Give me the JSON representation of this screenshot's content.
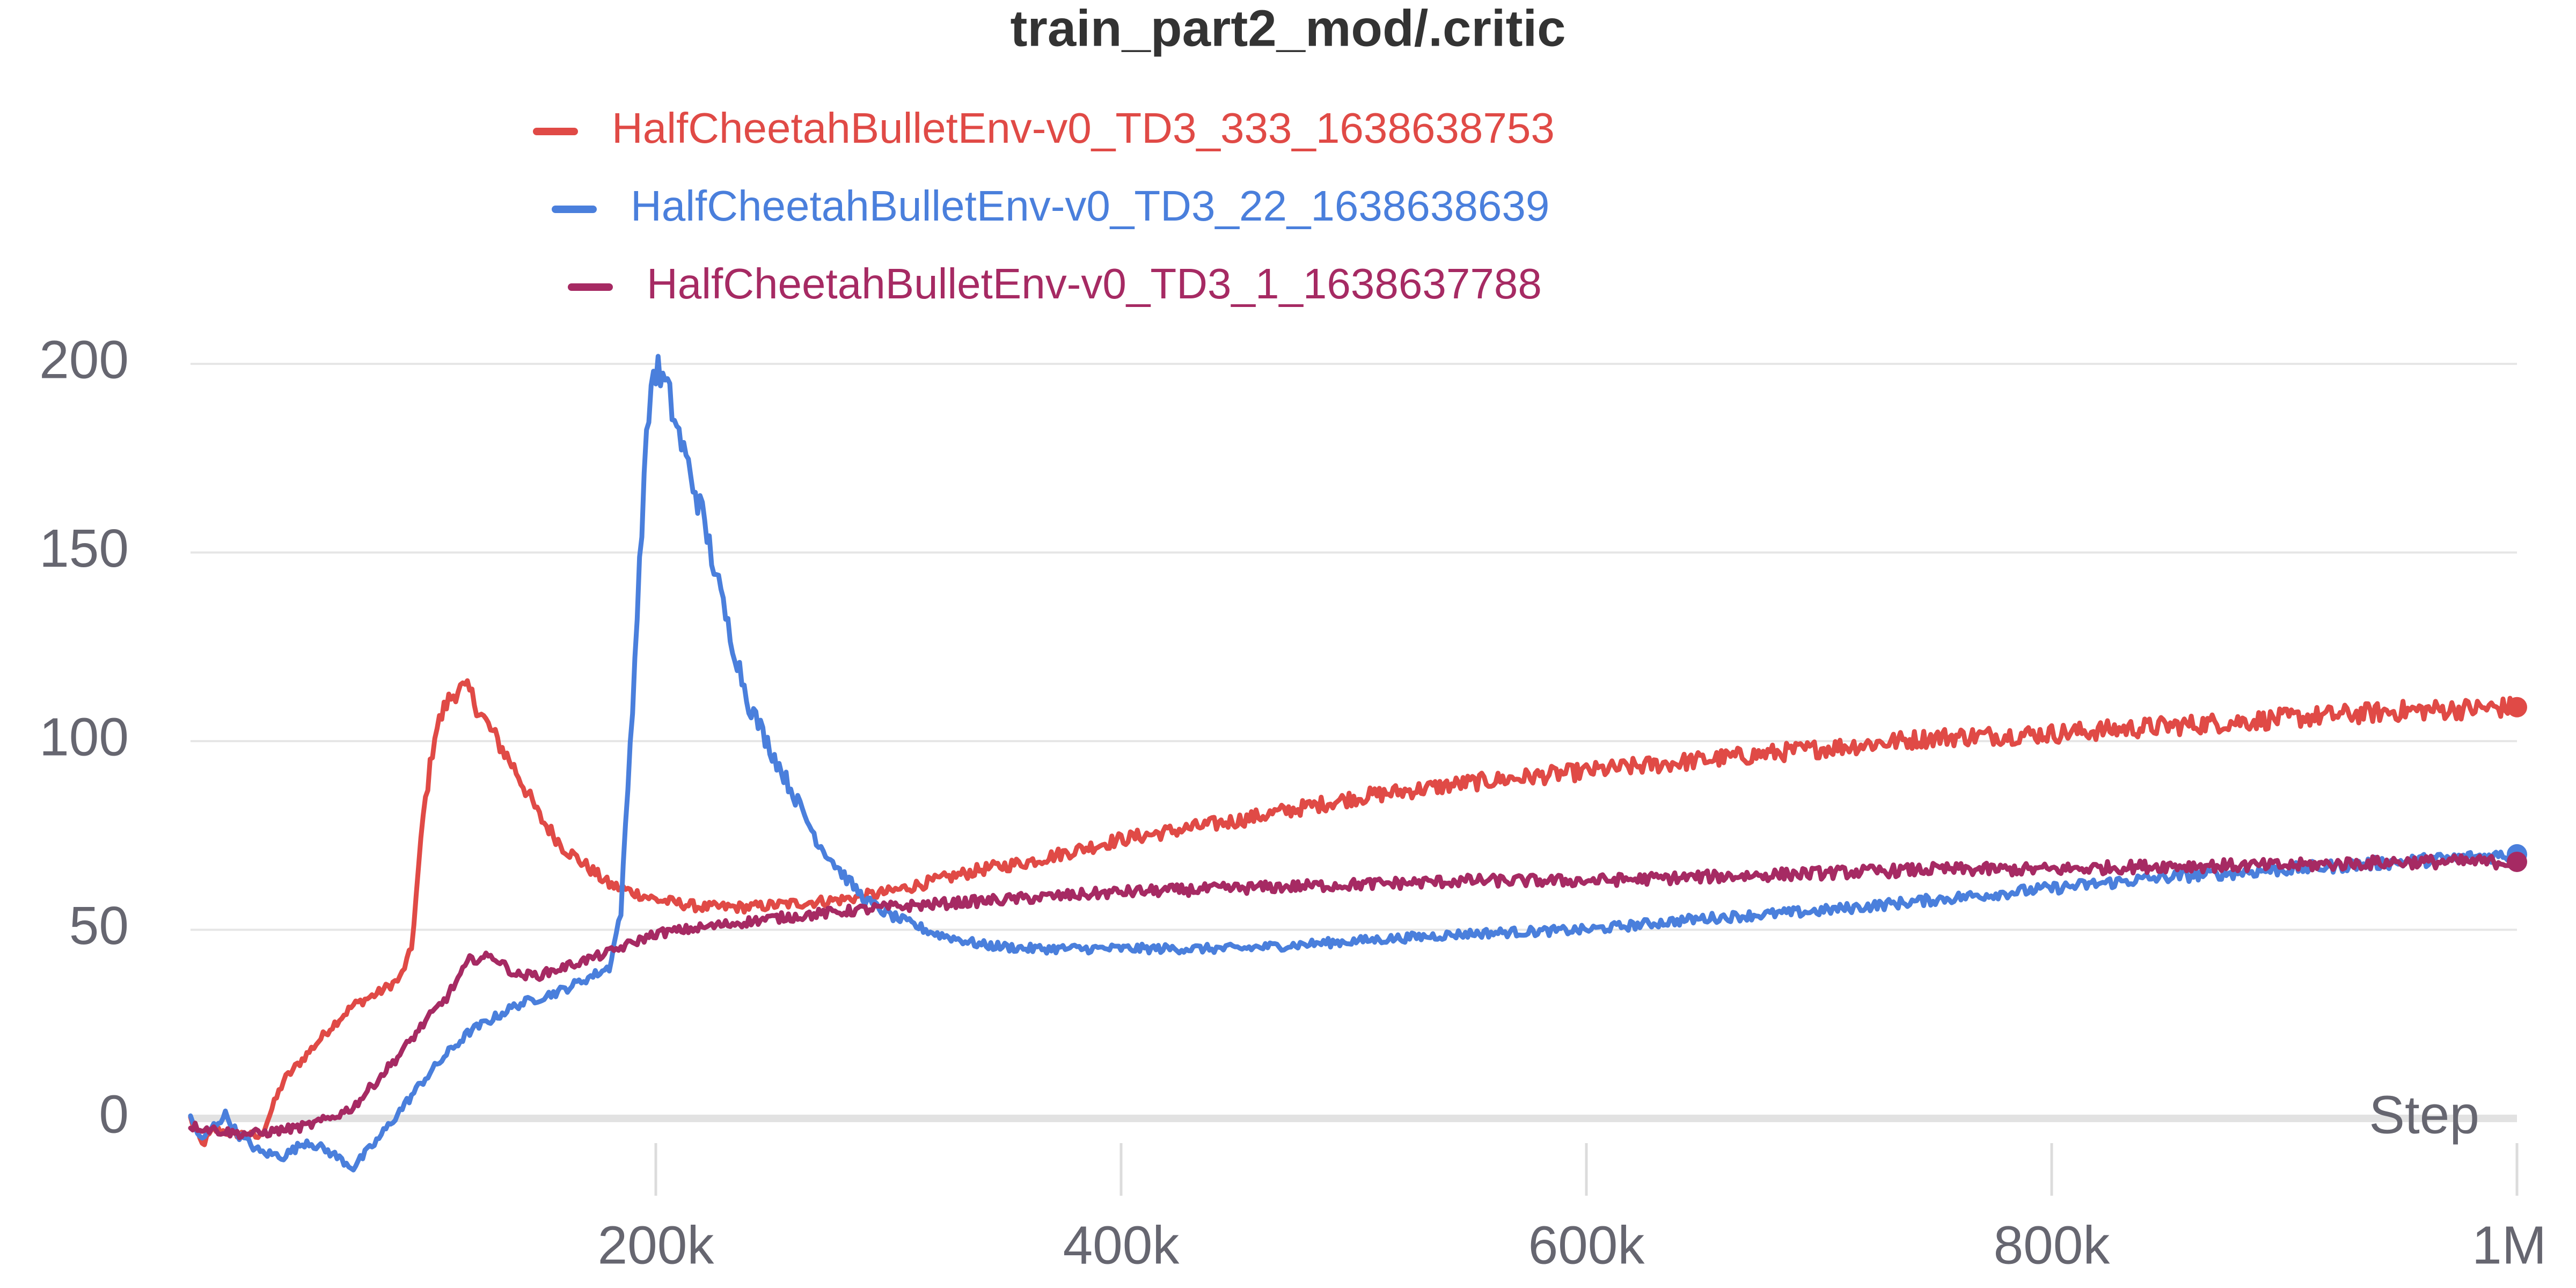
{
  "chart_data": {
    "type": "line",
    "title": "train_part2_mod/.critic",
    "xlabel": "Step",
    "ylabel": "",
    "xlim": [
      0,
      1000000
    ],
    "ylim": [
      -15,
      205
    ],
    "grid": true,
    "legend_position": "top",
    "y_ticks": [
      {
        "value": 0,
        "label": "0"
      },
      {
        "value": 50,
        "label": "50"
      },
      {
        "value": 100,
        "label": "100"
      },
      {
        "value": 150,
        "label": "150"
      },
      {
        "value": 200,
        "label": "200"
      }
    ],
    "x_ticks": [
      {
        "value": 200000,
        "label": "200k"
      },
      {
        "value": 400000,
        "label": "400k"
      },
      {
        "value": 600000,
        "label": "600k"
      },
      {
        "value": 800000,
        "label": "800k"
      },
      {
        "value": 1000000,
        "label": "1M"
      }
    ],
    "series": [
      {
        "name": "HalfCheetahBulletEnv-v0_TD3_333_1638638753",
        "color": "#e04a46",
        "x": [
          0,
          5000,
          10000,
          20000,
          30000,
          40000,
          50000,
          60000,
          70000,
          80000,
          90000,
          95000,
          100000,
          105000,
          110000,
          115000,
          120000,
          125000,
          130000,
          140000,
          150000,
          160000,
          170000,
          180000,
          200000,
          220000,
          240000,
          260000,
          280000,
          300000,
          320000,
          340000,
          360000,
          380000,
          400000,
          450000,
          500000,
          550000,
          600000,
          650000,
          700000,
          750000,
          800000,
          850000,
          900000,
          950000,
          1000000
        ],
        "y": [
          0,
          -7,
          -3,
          -4,
          -5,
          10,
          17,
          24,
          30,
          33,
          37,
          45,
          80,
          102,
          110,
          114,
          113,
          107,
          102,
          92,
          80,
          72,
          67,
          62,
          58,
          56,
          56,
          57,
          58,
          60,
          63,
          66,
          68,
          71,
          74,
          79,
          85,
          89,
          92,
          95,
          98,
          101,
          102,
          104,
          106,
          108,
          109
        ]
      },
      {
        "name": "HalfCheetahBulletEnv-v0_TD3_22_1638638639",
        "color": "#4a7fdc",
        "x": [
          0,
          5000,
          10000,
          15000,
          20000,
          30000,
          40000,
          50000,
          60000,
          70000,
          80000,
          90000,
          100000,
          110000,
          120000,
          140000,
          160000,
          180000,
          185000,
          190000,
          195000,
          198000,
          200000,
          205000,
          210000,
          220000,
          230000,
          240000,
          250000,
          260000,
          270000,
          280000,
          290000,
          300000,
          320000,
          340000,
          360000,
          380000,
          400000,
          450000,
          500000,
          550000,
          600000,
          650000,
          700000,
          750000,
          800000,
          850000,
          900000,
          950000,
          1000000
        ],
        "y": [
          0,
          -6,
          -2,
          1,
          -4,
          -9,
          -10,
          -6,
          -9,
          -13,
          -6,
          2,
          10,
          17,
          23,
          30,
          34,
          40,
          55,
          110,
          170,
          195,
          199,
          193,
          181,
          160,
          133,
          110,
          97,
          85,
          73,
          65,
          58,
          54,
          49,
          46,
          45,
          45,
          45,
          45,
          47,
          49,
          50,
          53,
          55,
          58,
          61,
          64,
          66,
          68,
          70
        ]
      },
      {
        "name": "HalfCheetahBulletEnv-v0_TD3_1_1638637788",
        "color": "#a62a63",
        "x": [
          0,
          10000,
          20000,
          30000,
          40000,
          50000,
          60000,
          70000,
          80000,
          90000,
          100000,
          110000,
          120000,
          130000,
          140000,
          150000,
          160000,
          180000,
          200000,
          250000,
          300000,
          350000,
          400000,
          450000,
          500000,
          550000,
          600000,
          650000,
          700000,
          750000,
          800000,
          850000,
          900000,
          950000,
          1000000
        ],
        "y": [
          -2,
          -3,
          -4,
          -4,
          -3,
          -2,
          0,
          3,
          10,
          17,
          25,
          32,
          42,
          43,
          38,
          38,
          40,
          44,
          49,
          53,
          56,
          58,
          60,
          61,
          62,
          63,
          63,
          64,
          65,
          66,
          66,
          67,
          67,
          68,
          68
        ]
      }
    ]
  }
}
